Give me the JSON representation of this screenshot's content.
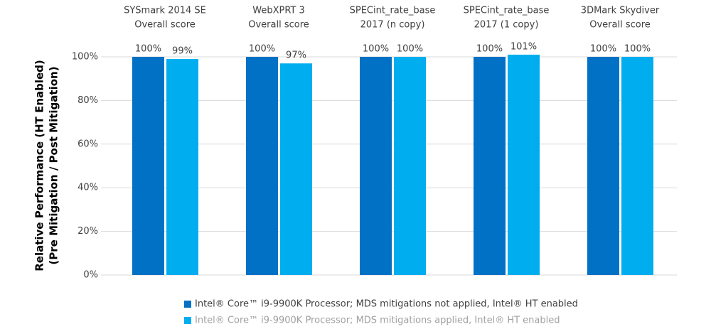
{
  "chart_data": {
    "type": "bar",
    "categories": [
      [
        "SYSmark 2014 SE",
        "Overall score"
      ],
      [
        "WebXPRT 3",
        "Overall score"
      ],
      [
        "SPECint_rate_base",
        "2017 (n copy)"
      ],
      [
        "SPECint_rate_base",
        "2017 (1 copy)"
      ],
      [
        "3DMark Skydiver",
        "Overall score"
      ]
    ],
    "series": [
      {
        "name": "Intel® Core™ i9-9900K Processor; MDS mitigations not applied, Intel® HT enabled",
        "color": "#0071c5",
        "values": [
          100,
          100,
          100,
          100,
          100
        ],
        "value_labels": [
          "100%",
          "100%",
          "100%",
          "100%",
          "100%"
        ]
      },
      {
        "name": "Intel® Core™ i9-9900K Processor; MDS mitigations applied, Intel® HT enabled",
        "color": "#00aeef",
        "values": [
          99,
          97,
          100,
          101,
          100
        ],
        "value_labels": [
          "99%",
          "97%",
          "100%",
          "101%",
          "100%"
        ]
      }
    ],
    "y_label": [
      "Relative Performance (HT Enabled)",
      "(Pre Mitigation / Post Mitigation)"
    ],
    "ylim": [
      0,
      100
    ],
    "yticks": [
      {
        "value": 0,
        "label": "0%"
      },
      {
        "value": 20,
        "label": "20%"
      },
      {
        "value": 40,
        "label": "40%"
      },
      {
        "value": 60,
        "label": "60%"
      },
      {
        "value": 80,
        "label": "80%"
      },
      {
        "value": 100,
        "label": "100%"
      }
    ],
    "grid": true
  }
}
